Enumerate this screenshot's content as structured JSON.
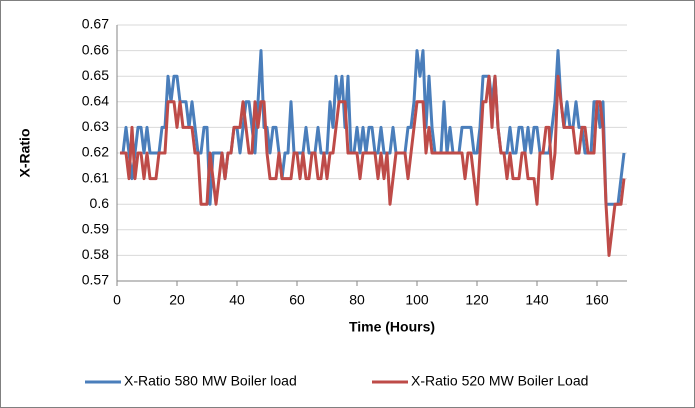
{
  "chart_data": {
    "type": "line",
    "xlabel": "Time (Hours)",
    "ylabel": "X-Ratio",
    "x": [
      1,
      2,
      3,
      4,
      5,
      6,
      7,
      8,
      9,
      10,
      11,
      12,
      13,
      14,
      15,
      16,
      17,
      18,
      19,
      20,
      21,
      22,
      23,
      24,
      25,
      26,
      27,
      28,
      29,
      30,
      31,
      32,
      33,
      34,
      35,
      36,
      37,
      38,
      39,
      40,
      41,
      42,
      43,
      44,
      45,
      46,
      47,
      48,
      49,
      50,
      51,
      52,
      53,
      54,
      55,
      56,
      57,
      58,
      59,
      60,
      61,
      62,
      63,
      64,
      65,
      66,
      67,
      68,
      69,
      70,
      71,
      72,
      73,
      74,
      75,
      76,
      77,
      78,
      79,
      80,
      81,
      82,
      83,
      84,
      85,
      86,
      87,
      88,
      89,
      90,
      91,
      92,
      93,
      94,
      95,
      96,
      97,
      98,
      99,
      100,
      101,
      102,
      103,
      104,
      105,
      106,
      107,
      108,
      109,
      110,
      111,
      112,
      113,
      114,
      115,
      116,
      117,
      118,
      119,
      120,
      121,
      122,
      123,
      124,
      125,
      126,
      127,
      128,
      129,
      130,
      131,
      132,
      133,
      134,
      135,
      136,
      137,
      138,
      139,
      140,
      141,
      142,
      143,
      144,
      145,
      146,
      147,
      148,
      149,
      150,
      151,
      152,
      153,
      154,
      155,
      156,
      157,
      158,
      159,
      160,
      161,
      162,
      163,
      164,
      165,
      166,
      167,
      168,
      169
    ],
    "series": [
      {
        "name": "X-Ratio 580 MW Boiler load",
        "color": "#4a7ebb",
        "values": [
          0.62,
          0.62,
          0.63,
          0.62,
          0.61,
          0.62,
          0.63,
          0.63,
          0.62,
          0.63,
          0.62,
          0.62,
          0.62,
          0.62,
          0.63,
          0.63,
          0.65,
          0.64,
          0.65,
          0.65,
          0.64,
          0.64,
          0.64,
          0.63,
          0.64,
          0.63,
          0.62,
          0.62,
          0.63,
          0.63,
          0.6,
          0.62,
          0.62,
          0.62,
          0.62,
          0.61,
          0.62,
          0.62,
          0.63,
          0.63,
          0.62,
          0.63,
          0.64,
          0.64,
          0.63,
          0.62,
          0.64,
          0.66,
          0.63,
          0.63,
          0.62,
          0.63,
          0.63,
          0.62,
          0.61,
          0.62,
          0.62,
          0.64,
          0.62,
          0.62,
          0.62,
          0.62,
          0.63,
          0.62,
          0.62,
          0.62,
          0.63,
          0.62,
          0.62,
          0.62,
          0.64,
          0.63,
          0.65,
          0.64,
          0.65,
          0.63,
          0.65,
          0.62,
          0.62,
          0.63,
          0.62,
          0.63,
          0.62,
          0.63,
          0.63,
          0.62,
          0.62,
          0.63,
          0.62,
          0.62,
          0.62,
          0.63,
          0.62,
          0.62,
          0.62,
          0.62,
          0.63,
          0.63,
          0.64,
          0.66,
          0.65,
          0.66,
          0.63,
          0.65,
          0.63,
          0.62,
          0.62,
          0.62,
          0.64,
          0.62,
          0.63,
          0.62,
          0.62,
          0.62,
          0.63,
          0.63,
          0.63,
          0.63,
          0.62,
          0.62,
          0.63,
          0.65,
          0.65,
          0.65,
          0.64,
          0.65,
          0.63,
          0.62,
          0.62,
          0.62,
          0.63,
          0.62,
          0.62,
          0.63,
          0.63,
          0.62,
          0.63,
          0.62,
          0.63,
          0.63,
          0.62,
          0.62,
          0.62,
          0.62,
          0.63,
          0.64,
          0.66,
          0.64,
          0.63,
          0.64,
          0.63,
          0.63,
          0.64,
          0.63,
          0.63,
          0.62,
          0.62,
          0.62,
          0.64,
          0.64,
          0.63,
          0.64,
          0.6,
          0.6,
          0.6,
          0.6,
          0.6,
          0.61,
          0.62
        ]
      },
      {
        "name": "X-Ratio 520 MW Boiler Load",
        "color": "#be4b48",
        "values": [
          0.62,
          0.62,
          0.62,
          0.61,
          0.63,
          0.61,
          0.62,
          0.62,
          0.61,
          0.62,
          0.61,
          0.61,
          0.61,
          0.62,
          0.62,
          0.62,
          0.64,
          0.64,
          0.64,
          0.63,
          0.64,
          0.63,
          0.63,
          0.63,
          0.63,
          0.62,
          0.62,
          0.6,
          0.6,
          0.6,
          0.62,
          0.61,
          0.6,
          0.61,
          0.62,
          0.61,
          0.62,
          0.62,
          0.63,
          0.63,
          0.63,
          0.64,
          0.63,
          0.62,
          0.62,
          0.64,
          0.63,
          0.64,
          0.64,
          0.62,
          0.61,
          0.61,
          0.61,
          0.62,
          0.61,
          0.61,
          0.61,
          0.61,
          0.62,
          0.62,
          0.61,
          0.62,
          0.61,
          0.61,
          0.62,
          0.62,
          0.61,
          0.61,
          0.62,
          0.61,
          0.62,
          0.62,
          0.63,
          0.64,
          0.64,
          0.64,
          0.62,
          0.62,
          0.62,
          0.62,
          0.61,
          0.62,
          0.62,
          0.62,
          0.62,
          0.62,
          0.61,
          0.62,
          0.61,
          0.62,
          0.6,
          0.61,
          0.62,
          0.62,
          0.62,
          0.62,
          0.61,
          0.62,
          0.63,
          0.64,
          0.64,
          0.64,
          0.62,
          0.63,
          0.62,
          0.62,
          0.62,
          0.62,
          0.62,
          0.62,
          0.62,
          0.62,
          0.62,
          0.62,
          0.62,
          0.61,
          0.62,
          0.62,
          0.61,
          0.6,
          0.62,
          0.64,
          0.64,
          0.65,
          0.63,
          0.65,
          0.63,
          0.62,
          0.62,
          0.61,
          0.62,
          0.61,
          0.61,
          0.61,
          0.62,
          0.62,
          0.61,
          0.61,
          0.61,
          0.6,
          0.62,
          0.62,
          0.63,
          0.63,
          0.61,
          0.62,
          0.65,
          0.64,
          0.63,
          0.63,
          0.63,
          0.63,
          0.62,
          0.62,
          0.63,
          0.63,
          0.62,
          0.62,
          0.62,
          0.64,
          0.64,
          0.63,
          0.6,
          0.58,
          0.59,
          0.6,
          0.6,
          0.6,
          0.61
        ]
      }
    ],
    "xlim": [
      0,
      170
    ],
    "xticks": [
      0,
      20,
      40,
      60,
      80,
      100,
      120,
      140,
      160
    ],
    "ylim": [
      0.57,
      0.67
    ],
    "yticks": [
      0.57,
      0.58,
      0.59,
      0.6,
      0.61,
      0.62,
      0.63,
      0.64,
      0.65,
      0.66,
      0.67
    ],
    "grid": true,
    "legend": "bottom"
  }
}
